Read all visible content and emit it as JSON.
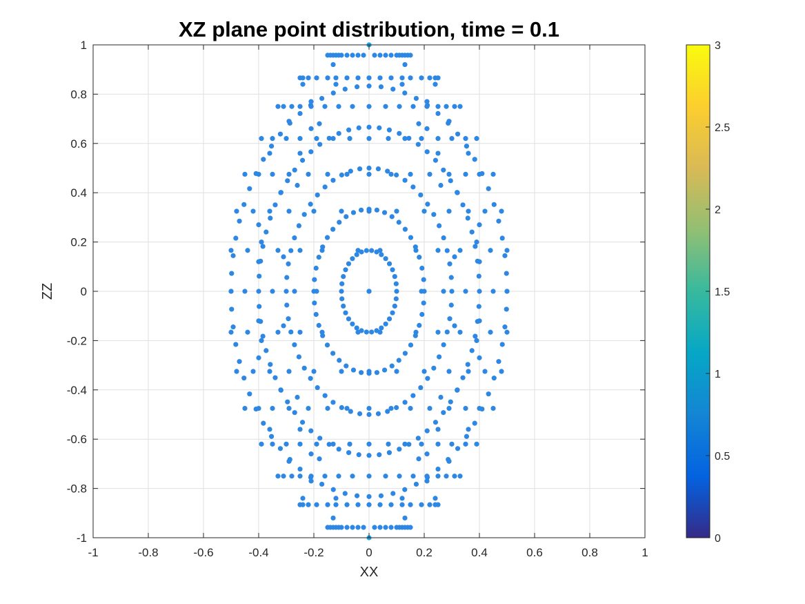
{
  "chart_data": {
    "type": "scatter",
    "title": "XZ plane point distribution, time = 0.1",
    "xlabel": "XX",
    "ylabel": "ZZ",
    "xlim": [
      -1,
      1
    ],
    "ylim": [
      -1,
      1
    ],
    "xticks": [
      -1,
      -0.8,
      -0.6,
      -0.4,
      -0.2,
      0,
      0.2,
      0.4,
      0.6,
      0.8,
      1
    ],
    "yticks": [
      -1,
      -0.8,
      -0.6,
      -0.4,
      -0.2,
      0,
      0.2,
      0.4,
      0.6,
      0.8,
      1
    ],
    "xtick_labels": [
      "-1",
      "-0.8",
      "-0.6",
      "-0.4",
      "-0.2",
      "0",
      "0.2",
      "0.4",
      "0.6",
      "0.8",
      "1"
    ],
    "ytick_labels": [
      "-1",
      "-0.8",
      "-0.6",
      "-0.4",
      "-0.2",
      "0",
      "0.2",
      "0.4",
      "0.6",
      "0.8",
      "1"
    ],
    "grid": true,
    "point_color": "#2e87e2",
    "pole_point_color": "#1fa4dc",
    "colormap": "parula",
    "colorbar": {
      "range": [
        0,
        3
      ],
      "ticks": [
        0,
        0.5,
        1,
        1.5,
        2,
        2.5,
        3
      ],
      "tick_labels": [
        "0",
        "0.5",
        "1",
        "1.5",
        "2",
        "2.5",
        "3"
      ],
      "colors": [
        "#352a87",
        "#0363e1",
        "#1485d4",
        "#06a7c6",
        "#38b99e",
        "#92bf73",
        "#d9ba56",
        "#fcce2e",
        "#f9fb0e"
      ]
    },
    "pole_points": [
      [
        0,
        1
      ],
      [
        0,
        -1
      ]
    ],
    "rings": [
      {
        "rx": 0.1,
        "rz": 0.166,
        "count": 34
      },
      {
        "rx": 0.2,
        "rz": 0.333,
        "count": 44
      },
      {
        "rx": 0.3,
        "rz": 0.5,
        "count": 56
      },
      {
        "rx": 0.4,
        "rz": 0.666,
        "count": 68
      },
      {
        "rx": 0.5,
        "rz": 0.833,
        "count": 72
      }
    ],
    "row_points": [
      {
        "z": 0.958,
        "x": [
          -0.15,
          -0.14,
          -0.13,
          -0.12,
          -0.11,
          -0.1,
          -0.08,
          -0.06,
          -0.04,
          -0.02,
          0.02,
          0.04,
          0.06,
          0.08,
          0.1,
          0.11,
          0.12,
          0.13,
          0.14,
          0.15
        ]
      },
      {
        "z": 0.92,
        "x": [
          -0.13,
          0.13
        ]
      },
      {
        "z": 0.866,
        "x": [
          -0.25,
          -0.24,
          -0.22,
          -0.19,
          -0.15,
          -0.12,
          -0.08,
          -0.04,
          0,
          0.04,
          0.08,
          0.12,
          0.15,
          0.19,
          0.22,
          0.24,
          0.25
        ]
      },
      {
        "z": 0.84,
        "x": [
          -0.24,
          -0.12,
          0.12,
          0.24
        ]
      },
      {
        "z": 0.75,
        "x": [
          -0.33,
          -0.31,
          -0.28,
          -0.25,
          -0.21,
          -0.16,
          -0.11,
          -0.06,
          0,
          0.06,
          0.11,
          0.16,
          0.21,
          0.25,
          0.28,
          0.31,
          0.33
        ]
      },
      {
        "z": 0.62,
        "x": [
          -0.39,
          -0.35,
          -0.3,
          -0.25,
          -0.19,
          -0.13,
          -0.07,
          0,
          0.07,
          0.13,
          0.19,
          0.25,
          0.3,
          0.35,
          0.39
        ]
      },
      {
        "z": 0.475,
        "x": [
          -0.45,
          -0.4,
          -0.35,
          -0.29,
          -0.22,
          -0.15,
          -0.08,
          0,
          0.08,
          0.15,
          0.22,
          0.29,
          0.35,
          0.4,
          0.45
        ]
      },
      {
        "z": 0.325,
        "x": [
          -0.48,
          -0.42,
          -0.36,
          -0.29,
          -0.2,
          -0.1,
          0,
          0.1,
          0.2,
          0.29,
          0.36,
          0.42,
          0.48
        ]
      },
      {
        "z": 0.166,
        "x": [
          -0.5,
          -0.44,
          -0.33,
          -0.25,
          -0.17,
          -0.04,
          0.04,
          0.17,
          0.25,
          0.33,
          0.44,
          0.5
        ]
      },
      {
        "z": 0,
        "x": [
          -0.5,
          -0.45,
          -0.35,
          -0.27,
          -0.19,
          0,
          0.19,
          0.27,
          0.35,
          0.45,
          0.5
        ]
      },
      {
        "z": -0.166,
        "x": [
          -0.5,
          -0.44,
          -0.33,
          -0.25,
          -0.17,
          -0.04,
          0.04,
          0.17,
          0.25,
          0.33,
          0.44,
          0.5
        ]
      },
      {
        "z": -0.325,
        "x": [
          -0.48,
          -0.42,
          -0.36,
          -0.29,
          -0.2,
          -0.1,
          0,
          0.1,
          0.2,
          0.29,
          0.36,
          0.42,
          0.48
        ]
      },
      {
        "z": -0.475,
        "x": [
          -0.45,
          -0.4,
          -0.35,
          -0.29,
          -0.22,
          -0.15,
          -0.08,
          0,
          0.08,
          0.15,
          0.22,
          0.29,
          0.35,
          0.4,
          0.45
        ]
      },
      {
        "z": -0.62,
        "x": [
          -0.39,
          -0.35,
          -0.3,
          -0.25,
          -0.19,
          -0.13,
          -0.07,
          0,
          0.07,
          0.13,
          0.19,
          0.25,
          0.3,
          0.35,
          0.39
        ]
      },
      {
        "z": -0.75,
        "x": [
          -0.33,
          -0.31,
          -0.28,
          -0.25,
          -0.21,
          -0.16,
          -0.11,
          -0.06,
          0,
          0.06,
          0.11,
          0.16,
          0.21,
          0.25,
          0.28,
          0.31,
          0.33
        ]
      },
      {
        "z": -0.84,
        "x": [
          -0.24,
          -0.12,
          0.12,
          0.24
        ]
      },
      {
        "z": -0.866,
        "x": [
          -0.25,
          -0.24,
          -0.22,
          -0.19,
          -0.15,
          -0.12,
          -0.08,
          -0.04,
          0,
          0.04,
          0.08,
          0.12,
          0.15,
          0.19,
          0.22,
          0.24,
          0.25
        ]
      },
      {
        "z": -0.92,
        "x": [
          -0.13,
          0.13
        ]
      },
      {
        "z": -0.958,
        "x": [
          -0.15,
          -0.14,
          -0.13,
          -0.12,
          -0.11,
          -0.1,
          -0.08,
          -0.06,
          -0.04,
          -0.02,
          0.02,
          0.04,
          0.06,
          0.08,
          0.1,
          0.11,
          0.12,
          0.13,
          0.14,
          0.15
        ]
      }
    ],
    "extra_points": [
      [
        -0.21,
        0.77
      ],
      [
        0.21,
        0.77
      ],
      [
        -0.29,
        0.69
      ],
      [
        0.29,
        0.69
      ],
      [
        -0.18,
        0.68
      ],
      [
        0.18,
        0.68
      ],
      [
        -0.36,
        0.56
      ],
      [
        0.36,
        0.56
      ],
      [
        -0.25,
        0.56
      ],
      [
        0.25,
        0.56
      ],
      [
        -0.32,
        0.4
      ],
      [
        0.32,
        0.4
      ],
      [
        -0.26,
        0.43
      ],
      [
        0.26,
        0.43
      ],
      [
        -0.4,
        0.27
      ],
      [
        0.4,
        0.27
      ],
      [
        -0.39,
        0.2
      ],
      [
        0.39,
        0.2
      ],
      [
        -0.31,
        0.14
      ],
      [
        0.31,
        0.14
      ],
      [
        -0.4,
        0.12
      ],
      [
        0.4,
        0.12
      ],
      [
        -0.21,
        0.66
      ],
      [
        0.21,
        0.66
      ],
      [
        -0.21,
        -0.77
      ],
      [
        0.21,
        -0.77
      ],
      [
        -0.29,
        -0.69
      ],
      [
        0.29,
        -0.69
      ],
      [
        -0.18,
        -0.68
      ],
      [
        0.18,
        -0.68
      ],
      [
        -0.36,
        -0.56
      ],
      [
        0.36,
        -0.56
      ],
      [
        -0.25,
        -0.56
      ],
      [
        0.25,
        -0.56
      ],
      [
        -0.32,
        -0.4
      ],
      [
        0.32,
        -0.4
      ],
      [
        -0.26,
        -0.43
      ],
      [
        0.26,
        -0.43
      ],
      [
        -0.4,
        -0.27
      ],
      [
        0.4,
        -0.27
      ],
      [
        -0.39,
        -0.2
      ],
      [
        0.39,
        -0.2
      ],
      [
        -0.31,
        -0.14
      ],
      [
        0.31,
        -0.14
      ],
      [
        -0.4,
        -0.12
      ],
      [
        0.4,
        -0.12
      ],
      [
        -0.21,
        -0.66
      ],
      [
        0.21,
        -0.66
      ]
    ]
  }
}
